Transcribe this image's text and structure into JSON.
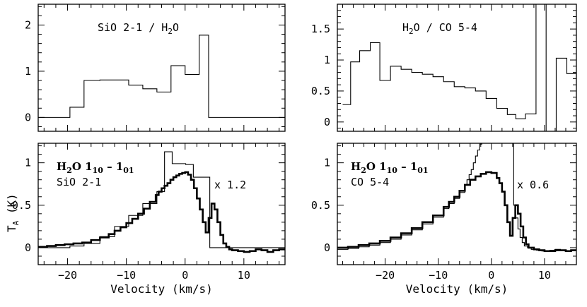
{
  "figure_title": "",
  "chart_data": [
    {
      "panel": "top-left",
      "type": "line",
      "drawstyle": "steps",
      "title": "",
      "label_parts": [
        "SiO 2-1 / H",
        "2",
        "O"
      ],
      "xlim": [
        -25,
        17
      ],
      "ylim": [
        -0.3,
        2.45
      ],
      "xticks_major": [
        -20,
        -10,
        0,
        10
      ],
      "xticks_minor_step": 2,
      "yticks": [
        0,
        1,
        2
      ],
      "yticks_minor_step": 0.2,
      "show_xticklabels": false,
      "series": [
        {
          "name": "SiO 2-1 / H2O ratio",
          "style": "thin",
          "x": [
            -25,
            -19.6,
            -17.2,
            -14.5,
            -12,
            -9.6,
            -7.2,
            -4.8,
            -2.4,
            0,
            2.4,
            4,
            17
          ],
          "y": [
            0,
            0.22,
            0.8,
            0.81,
            0.81,
            0.7,
            0.62,
            0.55,
            1.12,
            0.93,
            1.78,
            0,
            0
          ]
        }
      ]
    },
    {
      "panel": "top-right",
      "type": "line",
      "drawstyle": "steps",
      "title": "",
      "label_parts": [
        "H",
        "2",
        "O / CO 5-4"
      ],
      "xlim": [
        -29,
        16
      ],
      "ylim": [
        -0.15,
        1.9
      ],
      "xticks_major": [
        -20,
        -10,
        0,
        10
      ],
      "xticks_minor_step": 2,
      "yticks": [
        0,
        0.5,
        1,
        1.5
      ],
      "ytick_labels": [
        "0",
        "0.5",
        "1",
        "1.5"
      ],
      "yticks_minor_step": 0.1,
      "show_xticklabels": false,
      "series": [
        {
          "name": "H2O / CO 5-4 ratio",
          "style": "thin",
          "x": [
            -28,
            -26.5,
            -24.8,
            -22.8,
            -21,
            -19,
            -17,
            -15,
            -13,
            -11,
            -9,
            -7,
            -5,
            -3,
            -1,
            1,
            3,
            4.6,
            6.4,
            8.4,
            10.3,
            12.2,
            14.2,
            16
          ],
          "y": [
            0.28,
            0.97,
            1.15,
            1.28,
            0.67,
            0.9,
            0.85,
            0.8,
            0.77,
            0.73,
            0.65,
            0.57,
            0.55,
            0.5,
            0.38,
            0.22,
            0.12,
            0.05,
            0.13,
            1.9,
            -0.15,
            1.03,
            0.78,
            0.33
          ]
        }
      ]
    },
    {
      "panel": "bottom-left",
      "type": "line",
      "drawstyle": "steps",
      "title": "",
      "label_line1_parts": [
        "H",
        "2",
        "O 1",
        "10",
        " – 1",
        "01"
      ],
      "label_line2": "SiO 2-1",
      "scale_label": "x 1.2",
      "xlim": [
        -25,
        17
      ],
      "ylim": [
        -0.2,
        1.23
      ],
      "xticks_major": [
        -20,
        -10,
        0,
        10
      ],
      "xtick_labels": [
        "−20",
        "−10",
        "0",
        "10"
      ],
      "xticks_minor_step": 2,
      "yticks": [
        0,
        0.5,
        1
      ],
      "ytick_labels": [
        "0",
        "0.5",
        "1"
      ],
      "yticks_minor_step": 0.1,
      "show_xticklabels": true,
      "xlabel": "Velocity (km/s)",
      "ylabel": "T",
      "ylabel_subscript": "A",
      "ylabel_suffix": " (K)",
      "series": [
        {
          "name": "H2O 1_10 - 1_01",
          "style": "thick",
          "x": [
            -25,
            -23.5,
            -22,
            -20.5,
            -19,
            -17.5,
            -16,
            -14.5,
            -13,
            -12,
            -11,
            -10,
            -9,
            -8,
            -7,
            -6,
            -5,
            -4.5,
            -4,
            -3.5,
            -3,
            -2.5,
            -2,
            -1.5,
            -1,
            -0.5,
            0,
            0.5,
            1,
            1.5,
            2,
            2.5,
            3,
            3.5,
            4,
            4.5,
            5,
            5.5,
            6,
            6.5,
            7,
            7.5,
            8,
            9,
            10,
            11,
            12,
            13,
            14,
            15,
            16
          ],
          "y": [
            0.01,
            0.02,
            0.03,
            0.04,
            0.05,
            0.06,
            0.09,
            0.12,
            0.16,
            0.2,
            0.24,
            0.29,
            0.34,
            0.4,
            0.46,
            0.54,
            0.62,
            0.66,
            0.7,
            0.73,
            0.76,
            0.8,
            0.83,
            0.85,
            0.87,
            0.88,
            0.89,
            0.86,
            0.8,
            0.7,
            0.58,
            0.45,
            0.3,
            0.18,
            0.35,
            0.52,
            0.45,
            0.3,
            0.15,
            0.05,
            0.01,
            -0.02,
            -0.03,
            -0.04,
            -0.05,
            -0.04,
            -0.02,
            -0.03,
            -0.05,
            -0.03,
            -0.02
          ]
        },
        {
          "name": "SiO 2-1 (x 1.2)",
          "style": "thin",
          "x": [
            -25,
            -19.6,
            -17.2,
            -14.5,
            -12,
            -9.6,
            -7.2,
            -4.8,
            -3.5,
            -2.2,
            0.1,
            1.4,
            3.3,
            4.2,
            17
          ],
          "y": [
            0,
            0.02,
            0.05,
            0.13,
            0.25,
            0.38,
            0.52,
            0.66,
            1.13,
            0.99,
            0.98,
            0.83,
            0.83,
            0.0,
            -0.01
          ]
        }
      ]
    },
    {
      "panel": "bottom-right",
      "type": "line",
      "drawstyle": "steps",
      "title": "",
      "label_line1_parts": [
        "H",
        "2",
        "O 1",
        "10",
        " – 1",
        "01"
      ],
      "label_line2": "CO 5-4",
      "scale_label": "x 0.6",
      "xlim": [
        -29,
        16
      ],
      "ylim": [
        -0.2,
        1.23
      ],
      "xticks_major": [
        -20,
        -10,
        0,
        10
      ],
      "xtick_labels": [
        "−20",
        "−10",
        "0",
        "10"
      ],
      "xticks_minor_step": 2,
      "yticks": [
        0,
        0.5,
        1
      ],
      "ytick_labels": [
        "0",
        "0.5",
        "1"
      ],
      "yticks_minor_step": 0.1,
      "show_xticklabels": true,
      "xlabel": "Velocity (km/s)",
      "series": [
        {
          "name": "H2O 1_10 - 1_01",
          "style": "thick",
          "x": [
            -29,
            -27,
            -25,
            -23,
            -21,
            -19,
            -17,
            -15,
            -13,
            -11,
            -9,
            -8,
            -7,
            -6,
            -5,
            -4,
            -3,
            -2,
            -1,
            0,
            1,
            1.5,
            2,
            2.5,
            3,
            3.5,
            4,
            4.5,
            5,
            5.5,
            6,
            6.5,
            7,
            8,
            9,
            10,
            11,
            12,
            13,
            14,
            15,
            16
          ],
          "y": [
            0.0,
            0.01,
            0.03,
            0.05,
            0.08,
            0.12,
            0.17,
            0.23,
            0.3,
            0.38,
            0.48,
            0.54,
            0.6,
            0.67,
            0.74,
            0.8,
            0.84,
            0.87,
            0.89,
            0.88,
            0.82,
            0.76,
            0.66,
            0.5,
            0.3,
            0.14,
            0.35,
            0.5,
            0.4,
            0.25,
            0.12,
            0.04,
            0.0,
            -0.02,
            -0.03,
            -0.04,
            -0.04,
            -0.03,
            -0.03,
            -0.04,
            -0.03,
            -0.03
          ]
        },
        {
          "name": "CO 5-4 (x 0.6)",
          "style": "thin",
          "x": [
            -29,
            -27,
            -25,
            -23,
            -21,
            -19,
            -17,
            -15,
            -13,
            -11,
            -9,
            -8,
            -7,
            -6,
            -5,
            -4.6,
            -4.2,
            -3.8,
            -3.4,
            -3,
            -2.6,
            -2.2,
            -1.8,
            4.2,
            4.6,
            5,
            5.4,
            5.8,
            6.2,
            6.8,
            7.5,
            8.5,
            9.5,
            11,
            12,
            13,
            14,
            15,
            16
          ],
          "y": [
            -0.02,
            -0.01,
            0.01,
            0.03,
            0.06,
            0.1,
            0.15,
            0.21,
            0.28,
            0.36,
            0.46,
            0.52,
            0.58,
            0.65,
            0.74,
            0.8,
            0.86,
            0.92,
            1.0,
            1.08,
            1.15,
            1.22,
            1.3,
            0.5,
            0.35,
            0.22,
            0.12,
            0.06,
            0.02,
            0.0,
            -0.02,
            -0.03,
            -0.04,
            -0.03,
            -0.02,
            -0.03,
            -0.04,
            -0.03,
            -0.03
          ]
        }
      ]
    }
  ]
}
